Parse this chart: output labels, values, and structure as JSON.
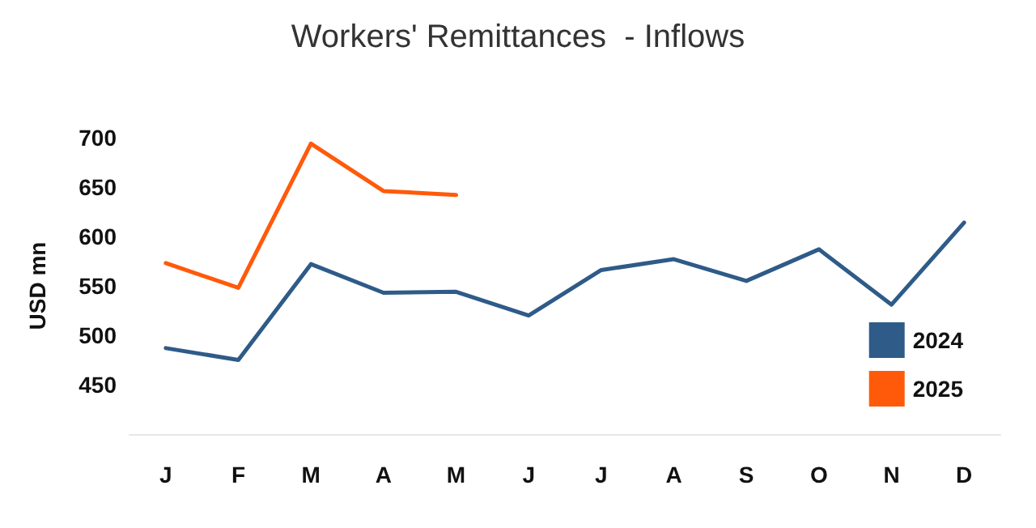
{
  "chart_data": {
    "type": "line",
    "title": "Workers' Remittances  - Inflows",
    "ylabel": "USD mn",
    "categories": [
      "J",
      "F",
      "M",
      "A",
      "M",
      "J",
      "J",
      "A",
      "S",
      "O",
      "N",
      "D"
    ],
    "series": [
      {
        "name": "2024",
        "color": "#2e5b88",
        "values": [
          487,
          475,
          572,
          543,
          544,
          520,
          566,
          577,
          555,
          587,
          531,
          614
        ]
      },
      {
        "name": "2025",
        "color": "#ff5a0a",
        "values": [
          573,
          548,
          694,
          646,
          642,
          null,
          null,
          null,
          null,
          null,
          null,
          null
        ]
      }
    ],
    "ylim": [
      400,
      700
    ],
    "yticks": [
      450,
      500,
      550,
      600,
      650,
      700
    ],
    "grid": false,
    "legend": "bottom right",
    "marker": "none",
    "line_style": "solid"
  }
}
